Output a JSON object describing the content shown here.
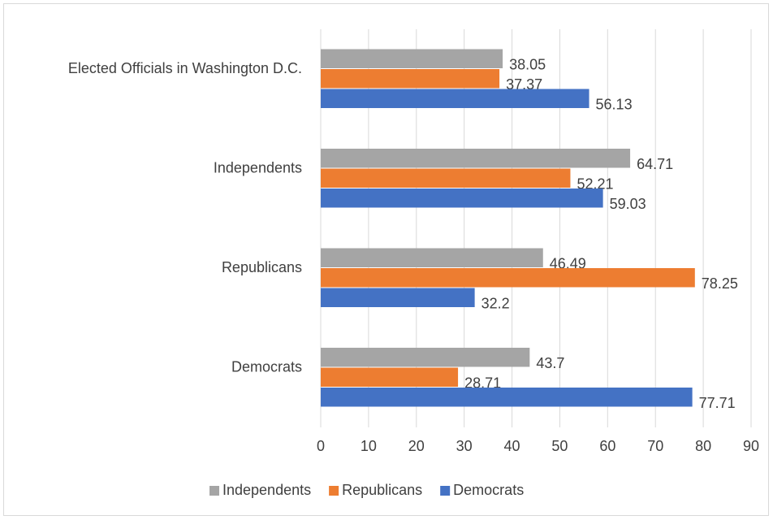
{
  "chart_data": {
    "type": "bar",
    "orientation": "horizontal",
    "categories": [
      "Elected Officials in Washington D.C.",
      "Independents",
      "Republicans",
      "Democrats"
    ],
    "series": [
      {
        "name": "Independents",
        "color": "#a5a5a5",
        "values": [
          38.05,
          64.71,
          46.49,
          43.7
        ]
      },
      {
        "name": "Republicans",
        "color": "#ed7d31",
        "values": [
          37.37,
          52.21,
          78.25,
          28.71
        ]
      },
      {
        "name": "Democrats",
        "color": "#4472c4",
        "values": [
          56.13,
          59.03,
          32.2,
          77.71
        ]
      }
    ],
    "xlim": [
      0,
      90
    ],
    "xticks": [
      0,
      10,
      20,
      30,
      40,
      50,
      60,
      70,
      80,
      90
    ],
    "grid": true,
    "legend": "bottom"
  }
}
